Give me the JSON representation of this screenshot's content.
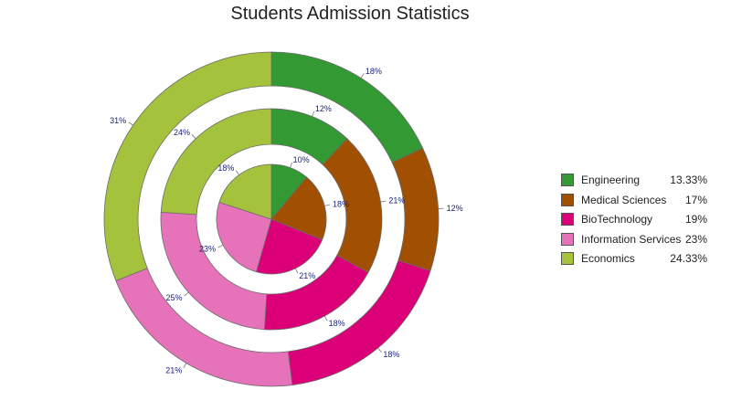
{
  "chart_data": {
    "type": "pie",
    "subtype": "multi-level doughnut",
    "title": "Students Admission Statistics",
    "categories": [
      "Engineering",
      "Medical Sciences",
      "BioTechnology",
      "Information Services",
      "Economics"
    ],
    "colors": [
      "#339933",
      "#a05000",
      "#dc0078",
      "#e673b9",
      "#a5c23c"
    ],
    "rings": [
      {
        "level": "inner",
        "values": [
          10,
          18,
          21,
          23,
          18
        ],
        "labels": [
          "10%",
          "18%",
          "21%",
          "23%",
          "18%"
        ]
      },
      {
        "level": "middle",
        "values": [
          12,
          21,
          18,
          25,
          24
        ],
        "labels": [
          "12%",
          "21%",
          "18%",
          "25%",
          "24%"
        ]
      },
      {
        "level": "outer",
        "values": [
          18,
          12,
          18,
          21,
          31
        ],
        "labels": [
          "18%",
          "12%",
          "18%",
          "21%",
          "31%"
        ]
      }
    ],
    "legend": {
      "position": "right",
      "entries": [
        {
          "label": "Engineering",
          "value": "13.33%"
        },
        {
          "label": "Medical Sciences",
          "value": "17%"
        },
        {
          "label": "BioTechnology",
          "value": "19%"
        },
        {
          "label": "Information Services",
          "value": "23%"
        },
        {
          "label": "Economics",
          "value": "24.33%"
        }
      ]
    }
  }
}
